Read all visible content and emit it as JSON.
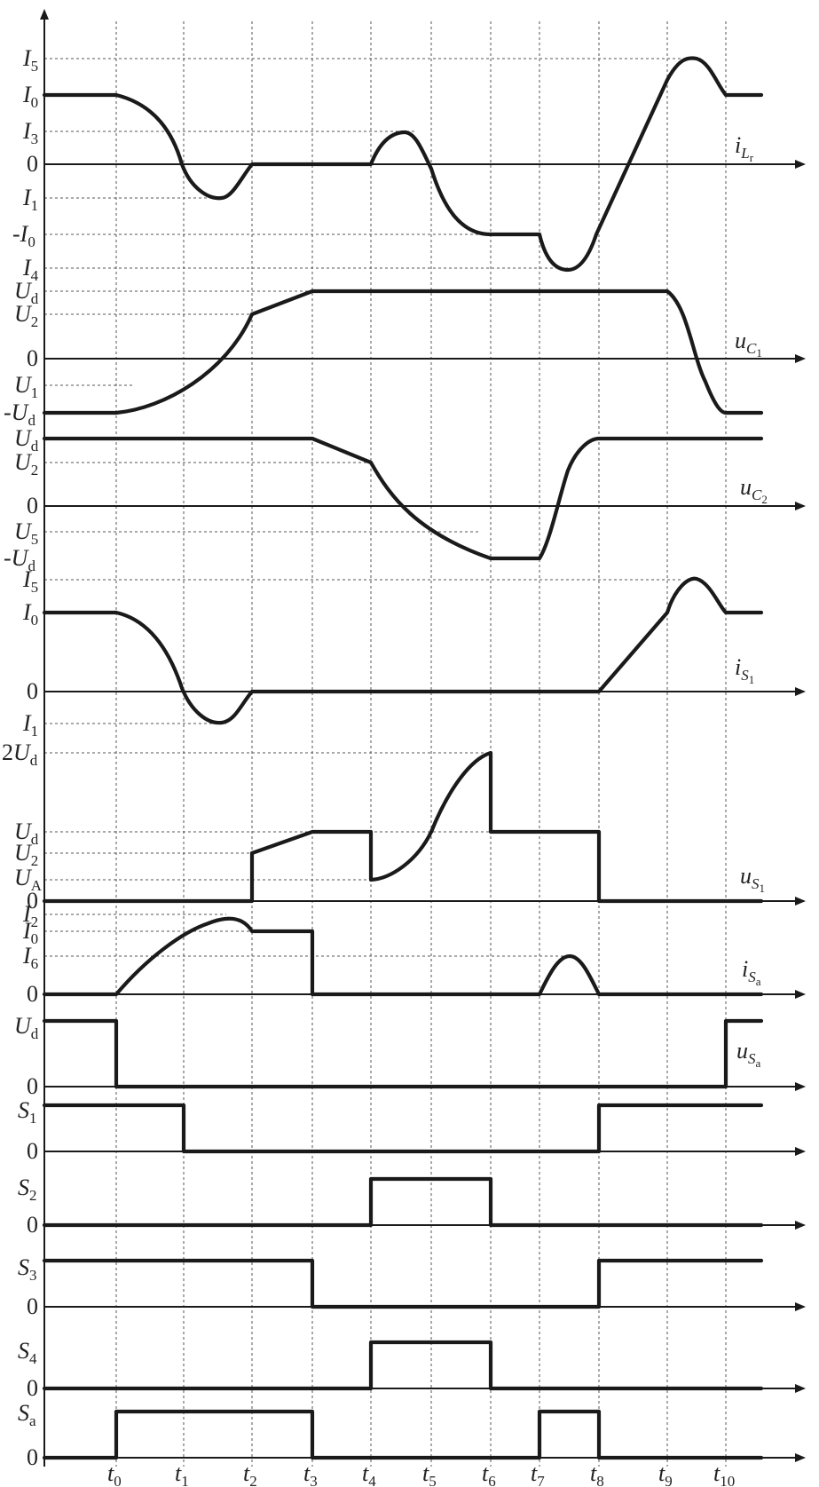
{
  "time_labels": [
    "t0",
    "t1",
    "t2",
    "t3",
    "t4",
    "t5",
    "t6",
    "t7",
    "t8",
    "t9",
    "t10"
  ],
  "panels": [
    {
      "id": "iLr",
      "signal": "i",
      "sub": "L",
      "subsub": "r",
      "levels": [
        "I5",
        "I0",
        "I3",
        "0",
        "I1",
        "-I0",
        "I4"
      ]
    },
    {
      "id": "uC1",
      "signal": "u",
      "sub": "C",
      "subsub": "1",
      "levels": [
        "Ud",
        "U2",
        "0",
        "U1",
        "-Ud"
      ]
    },
    {
      "id": "uC2",
      "signal": "u",
      "sub": "C",
      "subsub": "2",
      "levels": [
        "Ud",
        "U2",
        "0",
        "U5",
        "-Ud"
      ]
    },
    {
      "id": "iS1",
      "signal": "i",
      "sub": "S",
      "subsub": "1",
      "levels": [
        "I5",
        "I0",
        "0",
        "I1"
      ]
    },
    {
      "id": "uS1",
      "signal": "u",
      "sub": "S",
      "subsub": "1",
      "levels": [
        "2Ud",
        "Ud",
        "U2",
        "UA",
        "0"
      ]
    },
    {
      "id": "iSa",
      "signal": "i",
      "sub": "S",
      "subsub": "a",
      "levels": [
        "I2",
        "I0",
        "I6",
        "0"
      ]
    },
    {
      "id": "uSa",
      "signal": "u",
      "sub": "S",
      "subsub": "a",
      "levels": [
        "Ud",
        "0"
      ]
    },
    {
      "id": "S1",
      "levels": [
        "S1",
        "0"
      ]
    },
    {
      "id": "S2",
      "levels": [
        "S2",
        "0"
      ]
    },
    {
      "id": "S3",
      "levels": [
        "S3",
        "0"
      ]
    },
    {
      "id": "S4",
      "levels": [
        "S4",
        "0"
      ]
    },
    {
      "id": "Sa",
      "levels": [
        "Sa",
        "0"
      ]
    }
  ]
}
